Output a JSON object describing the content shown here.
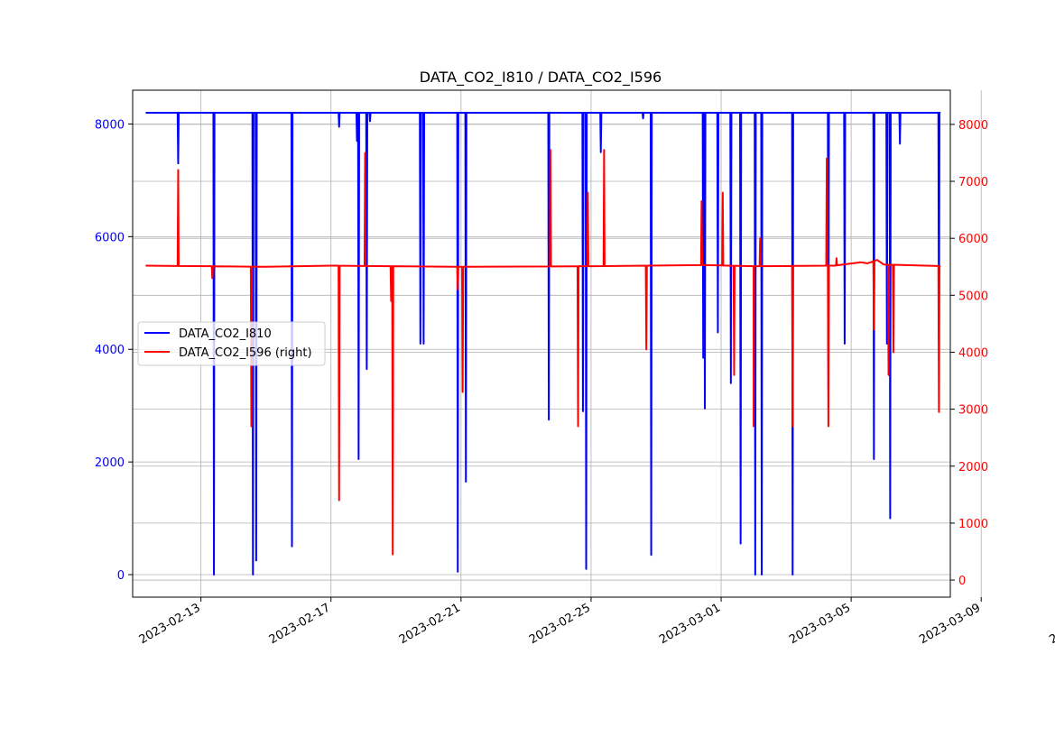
{
  "chart_data": {
    "type": "line",
    "title": "DATA_CO2_I810 / DATA_CO2_I596",
    "xlabel": "",
    "ylabel": "",
    "grid": true,
    "legend_position": "center-left",
    "x_start": "2023-02-11",
    "x_end": "2023-03-15",
    "x_range_days": [
      -1.1,
      24.05
    ],
    "x_ticks": [
      {
        "day": 1,
        "label": "2023-02-13"
      },
      {
        "day": 5,
        "label": "2023-02-17"
      },
      {
        "day": 9,
        "label": "2023-02-21"
      },
      {
        "day": 13,
        "label": "2023-02-25"
      },
      {
        "day": 17,
        "label": "2023-03-01"
      },
      {
        "day": 21,
        "label": "2023-03-05"
      },
      {
        "day": 25,
        "label": "2023-03-09"
      },
      {
        "day": 29,
        "label": "2023-03-13"
      }
    ],
    "left_axis": {
      "ylim": [
        -400,
        8600
      ],
      "ticks": [
        0,
        2000,
        4000,
        6000,
        8000
      ],
      "tick_labels": [
        "0",
        "2000",
        "4000",
        "6000",
        "8000"
      ],
      "color": "#0000ff"
    },
    "right_axis": {
      "ylim": [
        -300,
        8600
      ],
      "ticks": [
        0,
        1000,
        2000,
        3000,
        4000,
        5000,
        6000,
        7000,
        8000
      ],
      "tick_labels": [
        "0",
        "1000",
        "2000",
        "3000",
        "4000",
        "5000",
        "6000",
        "7000",
        "8000"
      ],
      "color": "#ff0000"
    },
    "series": [
      {
        "name": "DATA_CO2_I810",
        "legend_label": "DATA_CO2_I810",
        "axis": "left",
        "color": "#0000ff",
        "x_start_day": -0.7,
        "x_end_day": 30.5,
        "baseline": 8200,
        "dips": [
          [
            0.3,
            7300
          ],
          [
            1.4,
            0
          ],
          [
            2.6,
            0
          ],
          [
            2.7,
            250
          ],
          [
            3.8,
            500
          ],
          [
            5.25,
            7950
          ],
          [
            5.8,
            7700
          ],
          [
            5.85,
            2050
          ],
          [
            6.1,
            3650
          ],
          [
            6.2,
            8050
          ],
          [
            7.75,
            4100
          ],
          [
            7.85,
            4100
          ],
          [
            8.9,
            50
          ],
          [
            9.15,
            1650
          ],
          [
            11.7,
            2750
          ],
          [
            12.75,
            2900
          ],
          [
            12.85,
            100
          ],
          [
            13.3,
            7500
          ],
          [
            14.6,
            8100
          ],
          [
            14.85,
            350
          ],
          [
            16.45,
            3850
          ],
          [
            16.5,
            2950
          ],
          [
            16.9,
            4300
          ],
          [
            17.3,
            3400
          ],
          [
            17.6,
            550
          ],
          [
            18.05,
            0
          ],
          [
            18.25,
            0
          ],
          [
            19.2,
            0
          ],
          [
            20.3,
            3300
          ],
          [
            20.8,
            4100
          ],
          [
            21.7,
            2050
          ],
          [
            22.1,
            4100
          ],
          [
            22.2,
            1000
          ],
          [
            22.5,
            7650
          ],
          [
            23.7,
            4100
          ],
          [
            24.5,
            7950
          ],
          [
            25.9,
            5750
          ],
          [
            26.95,
            0
          ],
          [
            27.1,
            7650
          ],
          [
            27.5,
            2050
          ],
          [
            27.6,
            7800
          ],
          [
            28.0,
            0
          ],
          [
            28.1,
            2700
          ],
          [
            28.9,
            8150
          ],
          [
            30.15,
            5600
          ],
          [
            30.7,
            4100
          ],
          [
            31.2,
            0
          ],
          [
            31.7,
            7050
          ],
          [
            31.8,
            7700
          ],
          [
            32.65,
            0
          ],
          [
            32.8,
            6150
          ],
          [
            33.15,
            7950
          ]
        ]
      },
      {
        "name": "DATA_CO2_I596",
        "legend_label": "DATA_CO2_I596 (right)",
        "axis": "right",
        "color": "#ff0000",
        "x_start_day": -0.7,
        "x_end_day": 30.5,
        "baseline_points": [
          [
            -0.7,
            5520
          ],
          [
            3.0,
            5500
          ],
          [
            5.0,
            5520
          ],
          [
            9.0,
            5500
          ],
          [
            13.0,
            5510
          ],
          [
            16.5,
            5530
          ],
          [
            18.0,
            5510
          ],
          [
            20.5,
            5520
          ],
          [
            21.3,
            5580
          ],
          [
            21.5,
            5560
          ],
          [
            21.8,
            5620
          ],
          [
            22.0,
            5540
          ],
          [
            24.5,
            5500
          ],
          [
            27.0,
            5490
          ],
          [
            27.8,
            5480
          ],
          [
            28.0,
            5580
          ],
          [
            28.2,
            5480
          ],
          [
            29.0,
            5470
          ],
          [
            31.0,
            5480
          ],
          [
            33.0,
            5450
          ],
          [
            34.0,
            5440
          ],
          [
            35.0,
            5460
          ],
          [
            35.5,
            5460
          ]
        ],
        "dips": [
          [
            0.3,
            7200
          ],
          [
            1.35,
            5300
          ],
          [
            2.55,
            2700
          ],
          [
            3.8,
            5500
          ],
          [
            5.25,
            1400
          ],
          [
            6.05,
            7500
          ],
          [
            6.85,
            4900
          ],
          [
            6.9,
            450
          ],
          [
            8.9,
            5100
          ],
          [
            9.05,
            3300
          ],
          [
            11.75,
            7550
          ],
          [
            12.6,
            2700
          ],
          [
            12.9,
            6800
          ],
          [
            13.4,
            7550
          ],
          [
            14.7,
            4050
          ],
          [
            16.4,
            6650
          ],
          [
            17.05,
            6800
          ],
          [
            17.4,
            3600
          ],
          [
            18.0,
            2700
          ],
          [
            18.2,
            6000
          ],
          [
            19.2,
            2700
          ],
          [
            20.25,
            7400
          ],
          [
            20.3,
            2700
          ],
          [
            20.55,
            5650
          ],
          [
            21.7,
            4400
          ],
          [
            22.15,
            3600
          ],
          [
            22.3,
            4000
          ],
          [
            23.7,
            2950
          ],
          [
            24.5,
            4450
          ],
          [
            25.9,
            1400
          ],
          [
            26.95,
            6200
          ],
          [
            27.05,
            1750
          ],
          [
            27.5,
            8200
          ],
          [
            27.75,
            6800
          ],
          [
            28.1,
            2700
          ],
          [
            28.15,
            2700
          ],
          [
            29.0,
            4100
          ],
          [
            29.3,
            5300
          ],
          [
            30.2,
            5000
          ],
          [
            31.2,
            2700
          ],
          [
            31.7,
            4450
          ],
          [
            31.85,
            8150
          ],
          [
            32.95,
            50
          ],
          [
            33.0,
            0
          ],
          [
            33.2,
            2700
          ],
          [
            33.5,
            650
          ],
          [
            33.85,
            4950
          ]
        ]
      }
    ]
  }
}
